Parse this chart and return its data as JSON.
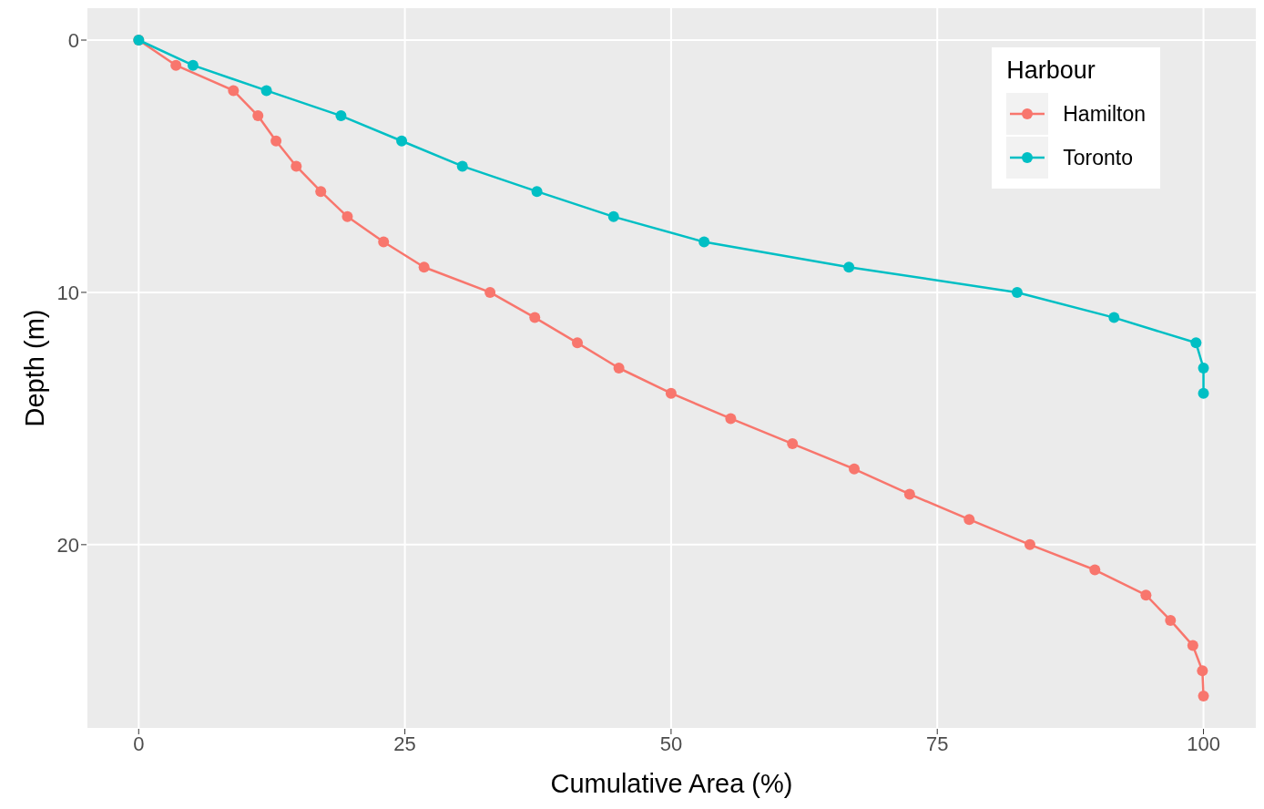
{
  "chart_data": {
    "type": "line",
    "xlabel": "Cumulative Area (%)",
    "ylabel": "Depth (m)",
    "legend_title": "Harbour",
    "legend": "top right",
    "grid": true,
    "marker": "circle",
    "line_style": "solid",
    "xlim": [
      -4.9,
      105
    ],
    "xticks": [
      0,
      25,
      50,
      75,
      100
    ],
    "ylim": [
      27.3,
      -1.3
    ],
    "yticks": [
      0,
      10,
      20
    ],
    "series": [
      {
        "name": "Hamilton",
        "color": "#f8766d",
        "x": [
          0,
          3.5,
          8.9,
          11.2,
          12.9,
          14.8,
          17.1,
          19.6,
          23.0,
          26.8,
          33.0,
          37.2,
          41.2,
          45.1,
          50.0,
          55.6,
          61.4,
          67.2,
          72.4,
          78.0,
          83.7,
          89.8,
          94.6,
          96.9,
          99.0,
          99.9,
          100
        ],
        "values": [
          0,
          1,
          2,
          3,
          4,
          5,
          6,
          7,
          8,
          9,
          10,
          11,
          12,
          13,
          14,
          15,
          16,
          17,
          18,
          19,
          20,
          21,
          22,
          23,
          24,
          25,
          26
        ]
      },
      {
        "name": "Toronto",
        "color": "#00bfc4",
        "x": [
          0,
          5.1,
          12.0,
          19.0,
          24.7,
          30.4,
          37.4,
          44.6,
          53.1,
          66.7,
          82.5,
          91.6,
          99.3,
          100,
          100
        ],
        "values": [
          0,
          1,
          2,
          3,
          4,
          5,
          6,
          7,
          8,
          9,
          10,
          11,
          12,
          13,
          14
        ]
      }
    ]
  }
}
